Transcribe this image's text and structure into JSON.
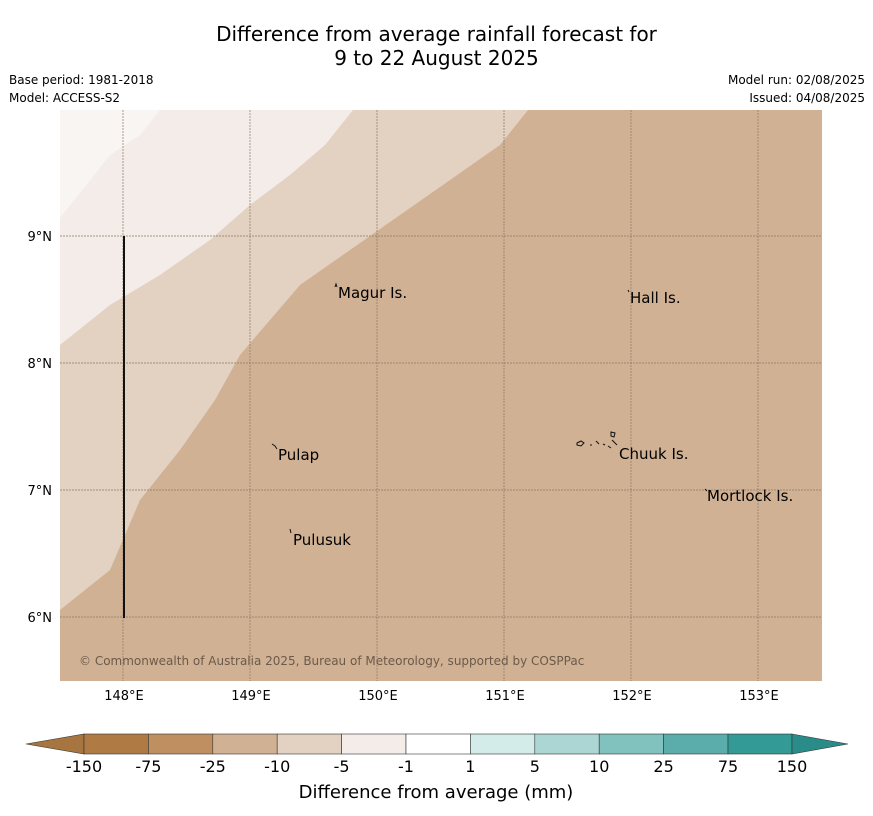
{
  "title_line1": "Difference from average rainfall forecast for",
  "title_line2": "9 to 22 August 2025",
  "meta_left": {
    "base_period": "Base period: 1981-2018",
    "model": "Model: ACCESS-S2"
  },
  "meta_right": {
    "model_run": "Model run: 02/08/2025",
    "issued": "Issued: 04/08/2025"
  },
  "lat_ticks": [
    "9°N",
    "8°N",
    "7°N",
    "6°N"
  ],
  "lon_ticks": [
    "148°E",
    "149°E",
    "150°E",
    "151°E",
    "152°E",
    "153°E"
  ],
  "places": {
    "magur": "Magur Is.",
    "hall": "Hall Is.",
    "pulap": "Pulap",
    "chuuk": "Chuuk Is.",
    "mortlock": "Mortlock Is.",
    "pulusuk": "Pulusuk"
  },
  "copyright": "© Commonwealth of Australia 2025, Bureau of Meteorology, supported by COSPPac",
  "colorbar": {
    "title": "Difference from average (mm)",
    "labels": [
      "-150",
      "-75",
      "-25",
      "-10",
      "-5",
      "-1",
      "1",
      "5",
      "10",
      "25",
      "75",
      "150"
    ],
    "colors": {
      "below_150": "#a67540",
      "m150_m75": "#b07a44",
      "m75_m25": "#bf8f62",
      "m25_m10": "#d1b194",
      "m10_m5": "#e3d1c1",
      "m5_m1": "#f4ece8",
      "m1_1": "#ffffff",
      "p1_5": "#d3ebe9",
      "p5_10": "#acd6d4",
      "p10_25": "#81c2bf",
      "p25_75": "#5aadab",
      "p75_150": "#339a96",
      "above_150": "#2a8c88"
    }
  }
}
